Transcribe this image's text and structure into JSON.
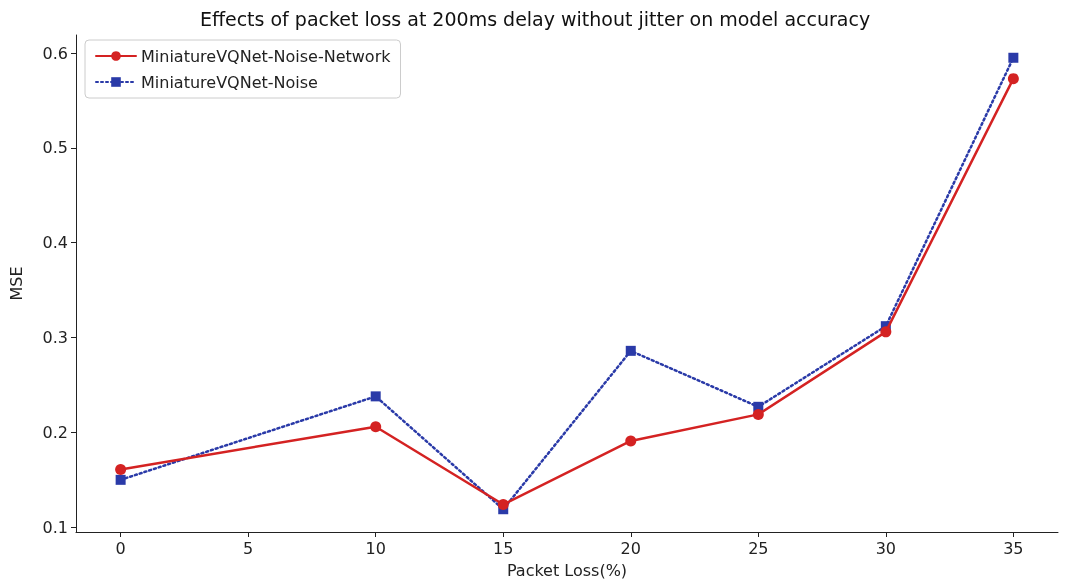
{
  "chart_data": {
    "type": "line",
    "title": "Effects of packet loss at 200ms delay without jitter on model accuracy",
    "xlabel": "Packet Loss(%)",
    "ylabel": "MSE",
    "x": [
      0,
      10,
      15,
      20,
      25,
      30,
      35
    ],
    "series": [
      {
        "name": "MiniatureVQNet-Noise-Network",
        "color": "#d42222",
        "marker": "circle",
        "line_style": "solid",
        "values": [
          0.161,
          0.206,
          0.124,
          0.191,
          0.219,
          0.306,
          0.573
        ]
      },
      {
        "name": "MiniatureVQNet-Noise",
        "color": "#2a3aa8",
        "marker": "square",
        "line_style": "dotted",
        "values": [
          0.15,
          0.238,
          0.119,
          0.286,
          0.227,
          0.312,
          0.595
        ]
      }
    ],
    "xlim": [
      -1.75,
      36.75
    ],
    "xticks": [
      0,
      5,
      10,
      15,
      20,
      25,
      30,
      35
    ],
    "ylim": [
      0.095,
      0.619
    ],
    "yticks": [
      0.1,
      0.2,
      0.3,
      0.4,
      0.5,
      0.6
    ],
    "grid": false,
    "legend": "top left"
  }
}
